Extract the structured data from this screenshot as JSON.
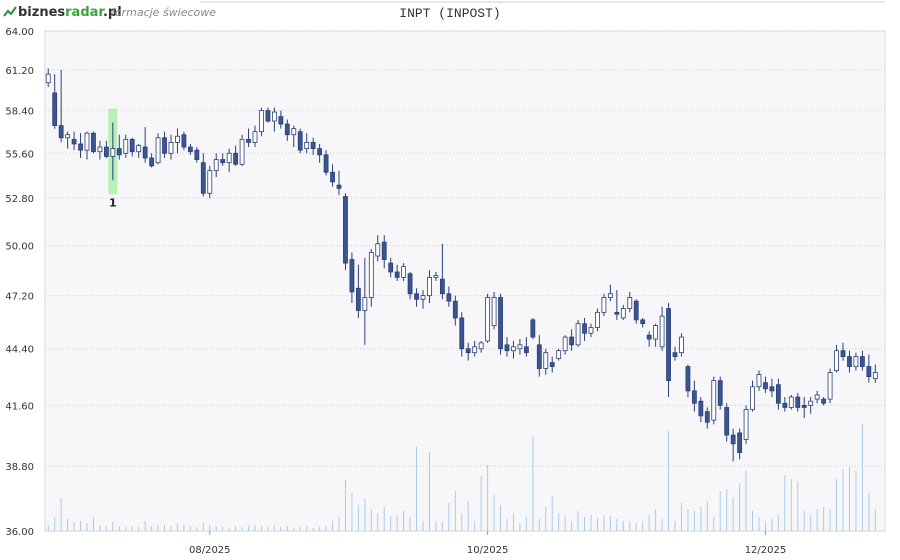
{
  "header": {
    "logo_a": "biznes",
    "logo_b": "radar",
    "logo_c": ".pl",
    "subtitle": "formacje świecowe"
  },
  "chart_data": {
    "type": "candlestick",
    "title": "INPT (INPOST)",
    "log_scale": true,
    "grid": true,
    "up_color": "#ffffff",
    "down_color": "#3b5592",
    "edge_color": "#2b3f78",
    "volume_color": "#a9cbe8",
    "highlight_color": "#b9f0b5",
    "ylim": [
      36,
      64
    ],
    "yticks": [
      {
        "value": 36,
        "label": "36.00"
      },
      {
        "value": 38.8,
        "label": "38.80"
      },
      {
        "value": 41.6,
        "label": "41.60"
      },
      {
        "value": 44.4,
        "label": "44.40"
      },
      {
        "value": 47.2,
        "label": "47.20"
      },
      {
        "value": 50,
        "label": "50.00"
      },
      {
        "value": 52.8,
        "label": "52.80"
      },
      {
        "value": 55.6,
        "label": "55.60"
      },
      {
        "value": 58.4,
        "label": "58.40"
      },
      {
        "value": 61.2,
        "label": "61.20"
      },
      {
        "value": 64,
        "label": "64.00"
      }
    ],
    "xlim": [
      -0.5,
      129.5
    ],
    "xticks": [
      {
        "value": 25,
        "label": "08/2025"
      },
      {
        "value": 68,
        "label": "10/2025"
      },
      {
        "value": 111,
        "label": "12/2025"
      }
    ],
    "annotations": [
      {
        "label": "1",
        "candle": 10
      }
    ],
    "candles": [
      [
        60.3,
        61.3,
        60.0,
        60.9
      ],
      [
        59.6,
        60.9,
        57.2,
        57.4
      ],
      [
        57.4,
        61.2,
        56.3,
        56.6
      ],
      [
        56.6,
        57.0,
        55.9,
        56.8
      ],
      [
        56.5,
        57.0,
        55.8,
        56.2
      ],
      [
        56.2,
        56.9,
        55.3,
        55.8
      ],
      [
        55.8,
        57.0,
        55.2,
        56.9
      ],
      [
        56.9,
        57.0,
        55.6,
        55.7
      ],
      [
        55.7,
        56.4,
        55.2,
        56.0
      ],
      [
        56.0,
        56.4,
        55.3,
        55.4
      ],
      [
        55.4,
        57.6,
        53.9,
        55.9
      ],
      [
        55.9,
        56.8,
        55.2,
        55.5
      ],
      [
        55.6,
        56.8,
        55.3,
        56.5
      ],
      [
        56.5,
        56.6,
        55.4,
        55.7
      ],
      [
        55.7,
        56.2,
        55.3,
        56.1
      ],
      [
        56.0,
        57.3,
        55.0,
        55.3
      ],
      [
        55.3,
        55.6,
        54.7,
        54.8
      ],
      [
        55.0,
        56.9,
        54.9,
        56.6
      ],
      [
        56.6,
        57.0,
        55.3,
        55.6
      ],
      [
        55.6,
        56.8,
        55.2,
        56.3
      ],
      [
        56.3,
        57.2,
        55.6,
        56.7
      ],
      [
        56.8,
        57.0,
        55.8,
        56.0
      ],
      [
        56.0,
        56.2,
        55.5,
        55.7
      ],
      [
        55.8,
        56.0,
        55.0,
        55.2
      ],
      [
        55.0,
        55.6,
        52.9,
        53.1
      ],
      [
        53.1,
        54.8,
        52.8,
        54.5
      ],
      [
        54.5,
        55.6,
        54.1,
        55.2
      ],
      [
        55.2,
        55.6,
        54.8,
        55.0
      ],
      [
        55.0,
        55.9,
        54.4,
        55.6
      ],
      [
        55.6,
        56.1,
        54.8,
        54.9
      ],
      [
        54.9,
        56.8,
        54.8,
        56.5
      ],
      [
        56.5,
        57.2,
        56.0,
        56.3
      ],
      [
        56.3,
        57.4,
        56.0,
        57.0
      ],
      [
        57.0,
        58.6,
        56.7,
        58.4
      ],
      [
        58.4,
        58.6,
        57.6,
        57.7
      ],
      [
        57.7,
        58.6,
        57.0,
        58.3
      ],
      [
        58.0,
        58.4,
        57.2,
        57.5
      ],
      [
        57.5,
        57.8,
        56.4,
        56.8
      ],
      [
        56.8,
        57.4,
        56.0,
        57.2
      ],
      [
        57.0,
        57.2,
        55.6,
        55.8
      ],
      [
        55.9,
        56.9,
        55.6,
        56.3
      ],
      [
        56.3,
        56.6,
        55.5,
        55.9
      ],
      [
        55.9,
        56.2,
        55.0,
        55.5
      ],
      [
        55.5,
        55.8,
        54.2,
        54.4
      ],
      [
        54.4,
        54.9,
        53.5,
        53.8
      ],
      [
        53.6,
        54.5,
        53.0,
        53.4
      ],
      [
        52.9,
        53.1,
        48.6,
        49.0
      ],
      [
        49.2,
        49.6,
        46.8,
        47.4
      ],
      [
        47.6,
        48.9,
        46.0,
        46.4
      ],
      [
        46.4,
        49.3,
        44.6,
        47.1
      ],
      [
        47.1,
        49.8,
        46.6,
        49.6
      ],
      [
        49.4,
        50.6,
        49.1,
        50.1
      ],
      [
        50.2,
        50.6,
        48.7,
        49.2
      ],
      [
        49.0,
        49.3,
        48.2,
        48.5
      ],
      [
        48.5,
        48.9,
        48.0,
        48.2
      ],
      [
        48.2,
        49.0,
        48.0,
        48.8
      ],
      [
        48.4,
        48.5,
        47.0,
        47.3
      ],
      [
        47.3,
        47.6,
        46.6,
        47.0
      ],
      [
        47.0,
        47.5,
        46.5,
        47.2
      ],
      [
        47.2,
        48.6,
        46.8,
        48.2
      ],
      [
        48.2,
        48.5,
        48.0,
        48.3
      ],
      [
        48.1,
        50.1,
        47.0,
        47.3
      ],
      [
        47.3,
        47.7,
        46.6,
        46.9
      ],
      [
        46.9,
        47.2,
        45.6,
        46.0
      ],
      [
        46.0,
        46.3,
        44.0,
        44.4
      ],
      [
        44.4,
        44.7,
        43.8,
        44.2
      ],
      [
        44.2,
        44.8,
        44.0,
        44.5
      ],
      [
        44.4,
        44.8,
        44.2,
        44.7
      ],
      [
        44.8,
        47.3,
        44.7,
        47.1
      ],
      [
        45.6,
        47.4,
        45.4,
        47.1
      ],
      [
        47.1,
        47.3,
        44.1,
        44.4
      ],
      [
        44.6,
        45.0,
        44.0,
        44.3
      ],
      [
        44.3,
        44.8,
        43.9,
        44.5
      ],
      [
        44.4,
        44.9,
        44.1,
        44.6
      ],
      [
        44.5,
        45.0,
        44.0,
        44.2
      ],
      [
        45.9,
        46.0,
        44.9,
        45.0
      ],
      [
        44.6,
        45.1,
        43.0,
        43.4
      ],
      [
        43.4,
        44.4,
        43.1,
        44.2
      ],
      [
        43.7,
        44.0,
        43.2,
        43.5
      ],
      [
        43.9,
        44.4,
        43.8,
        44.3
      ],
      [
        44.3,
        45.1,
        44.1,
        45.0
      ],
      [
        45.0,
        45.4,
        44.3,
        44.6
      ],
      [
        44.6,
        45.9,
        44.5,
        45.7
      ],
      [
        45.7,
        46.0,
        44.8,
        45.2
      ],
      [
        45.2,
        45.7,
        45.0,
        45.5
      ],
      [
        45.5,
        46.5,
        45.3,
        46.3
      ],
      [
        46.3,
        47.3,
        46.1,
        47.1
      ],
      [
        47.1,
        47.8,
        46.9,
        47.3
      ],
      [
        46.3,
        47.5,
        45.9,
        46.2
      ],
      [
        46.0,
        46.7,
        45.9,
        46.5
      ],
      [
        46.5,
        47.4,
        46.3,
        47.1
      ],
      [
        46.9,
        47.0,
        45.7,
        45.9
      ],
      [
        45.9,
        46.0,
        45.5,
        45.7
      ],
      [
        45.1,
        45.3,
        44.5,
        44.9
      ],
      [
        44.9,
        45.7,
        44.5,
        45.6
      ],
      [
        44.5,
        46.6,
        44.3,
        46.1
      ],
      [
        46.5,
        46.8,
        42.0,
        42.8
      ],
      [
        44.2,
        44.5,
        43.8,
        44.0
      ],
      [
        44.2,
        45.2,
        44.0,
        45.0
      ],
      [
        43.5,
        43.6,
        42.0,
        42.3
      ],
      [
        42.3,
        42.8,
        41.3,
        41.7
      ],
      [
        41.8,
        42.0,
        40.8,
        41.1
      ],
      [
        41.3,
        41.5,
        40.5,
        40.8
      ],
      [
        40.9,
        43.0,
        40.7,
        42.8
      ],
      [
        42.8,
        43.0,
        41.4,
        41.6
      ],
      [
        41.5,
        41.7,
        39.9,
        40.2
      ],
      [
        40.2,
        40.5,
        39.0,
        39.8
      ],
      [
        40.3,
        40.5,
        39.1,
        39.4
      ],
      [
        40.0,
        41.6,
        39.8,
        41.4
      ],
      [
        41.4,
        42.8,
        41.3,
        42.5
      ],
      [
        42.5,
        43.3,
        42.3,
        43.1
      ],
      [
        42.7,
        43.0,
        42.2,
        42.4
      ],
      [
        42.5,
        42.9,
        42.0,
        42.3
      ],
      [
        42.6,
        42.9,
        41.4,
        41.7
      ],
      [
        41.7,
        42.0,
        41.3,
        41.5
      ],
      [
        41.5,
        42.1,
        41.4,
        42.0
      ],
      [
        42.0,
        42.2,
        41.3,
        41.5
      ],
      [
        41.6,
        42.0,
        41.0,
        41.5
      ],
      [
        41.6,
        42.0,
        41.2,
        41.8
      ],
      [
        41.9,
        42.3,
        41.7,
        42.1
      ],
      [
        41.9,
        42.0,
        41.6,
        41.7
      ],
      [
        41.9,
        43.4,
        41.7,
        43.2
      ],
      [
        43.3,
        44.6,
        43.2,
        44.3
      ],
      [
        44.3,
        44.7,
        43.8,
        44.0
      ],
      [
        44.0,
        44.3,
        43.2,
        43.5
      ],
      [
        43.5,
        44.2,
        43.3,
        44.0
      ],
      [
        44.0,
        44.3,
        43.3,
        43.5
      ],
      [
        43.5,
        44.1,
        42.7,
        43.0
      ],
      [
        42.9,
        43.6,
        42.7,
        43.2
      ]
    ],
    "volume": [
      6,
      14,
      33,
      12,
      9,
      10,
      8,
      14,
      6,
      5,
      9,
      5,
      4,
      5,
      4,
      10,
      5,
      6,
      6,
      5,
      7,
      6,
      5,
      4,
      8,
      6,
      5,
      4,
      3,
      5,
      4,
      5,
      6,
      5,
      4,
      6,
      4,
      5,
      3,
      4,
      5,
      3,
      4,
      5,
      10,
      14,
      51,
      38,
      26,
      32,
      22,
      18,
      24,
      15,
      16,
      20,
      14,
      84,
      10,
      79,
      10,
      9,
      28,
      40,
      18,
      30,
      10,
      55,
      66,
      36,
      26,
      12,
      18,
      8,
      14,
      95,
      12,
      24,
      35,
      18,
      16,
      10,
      20,
      14,
      16,
      13,
      16,
      15,
      12,
      10,
      10,
      8,
      10,
      16,
      22,
      12,
      100,
      10,
      28,
      22,
      20,
      24,
      30,
      14,
      40,
      42,
      34,
      48,
      60,
      20,
      14,
      10,
      12,
      16,
      56,
      52,
      50,
      20,
      16,
      22,
      24,
      22,
      52,
      62,
      64,
      60,
      107,
      38,
      22
    ]
  }
}
